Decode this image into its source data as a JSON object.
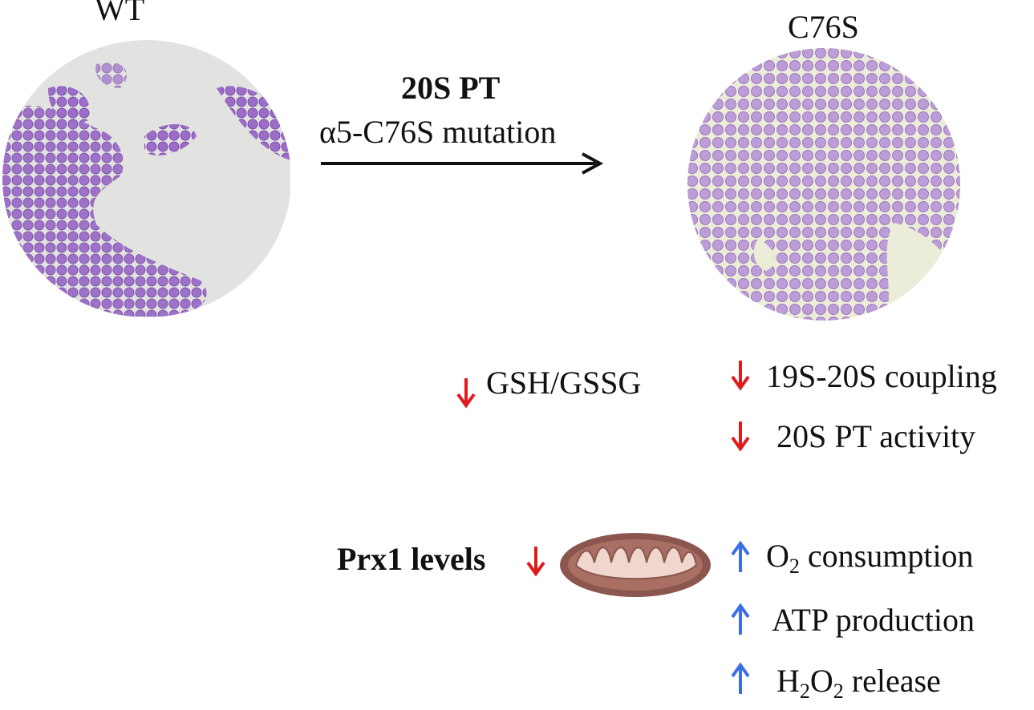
{
  "wt_label": "WT",
  "mutant_label": "C76S",
  "transition": {
    "title": "20S PT",
    "subtitle": "α5-C76S mutation"
  },
  "left_effect": {
    "label": "GSH/GSSG",
    "direction": "down"
  },
  "right_effects": [
    {
      "label": "19S-20S coupling",
      "direction": "down"
    },
    {
      "label": "20S PT activity",
      "direction": "down"
    }
  ],
  "prx1": {
    "label": "Prx1 levels",
    "direction": "down"
  },
  "mito_effects": [
    {
      "prefix": "O",
      "sub": "2",
      "suffix": " consumption",
      "direction": "up"
    },
    {
      "prefix": "ATP production",
      "sub": "",
      "suffix": "",
      "direction": "up"
    },
    {
      "prefix": "H",
      "sub": "2",
      "middle": "O",
      "sub2": "2",
      "suffix": " release",
      "direction": "up"
    }
  ],
  "colors": {
    "down_arrow": "#e01b1b",
    "up_arrow": "#3a6fe8",
    "stain_purple": "#9b6cc8",
    "slide_bg_wt": "#e2e3e0",
    "slide_bg_mutant": "#ecedd8",
    "mito_outer": "#8a564d",
    "mito_inner": "#f0d6cc"
  }
}
